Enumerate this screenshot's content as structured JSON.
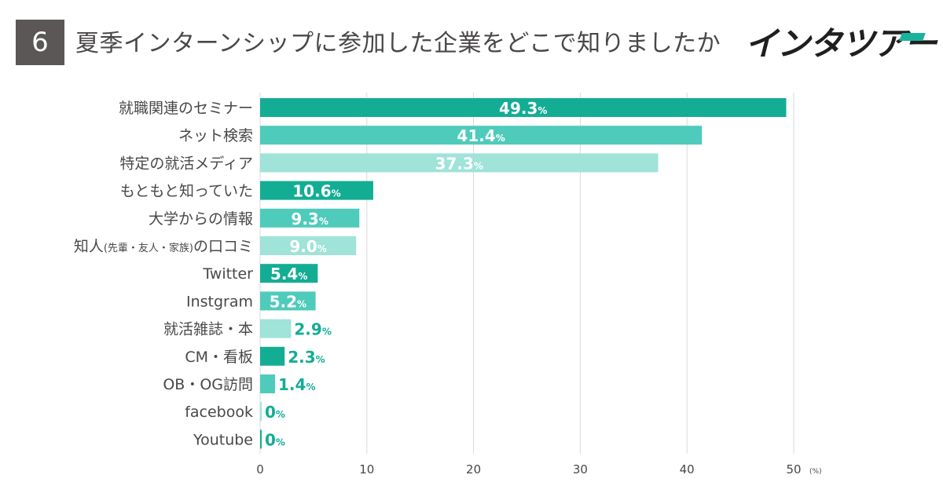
{
  "badge_number": "6",
  "logo": {
    "text": "インタツアー"
  },
  "colors": {
    "dark": "#13ad94",
    "medium": "#4fcbbb",
    "light": "#a0e3d8",
    "text": "#4a4747",
    "grid": "#d9d9d9",
    "badge": "#5b5757"
  },
  "chart_data": {
    "type": "bar",
    "orientation": "horizontal",
    "title": "夏季インターンシップに参加した企業をどこで知りましたか",
    "categories": [
      "就職関連のセミナー",
      "ネット検索",
      "特定の就活メディア",
      "もともと知っていた",
      "大学からの情報",
      "知人(先輩・友人・家族)の口コミ",
      "Twitter",
      "Instgram",
      "就活雑誌・本",
      "CM・看板",
      "OB・OG訪問",
      "facebook",
      "Youtube"
    ],
    "category_parts": [
      [
        "就職関連のセミナー"
      ],
      [
        "ネット検索"
      ],
      [
        "特定の就活メディア"
      ],
      [
        "もともと知っていた"
      ],
      [
        "大学からの情報"
      ],
      [
        "知人",
        "(先輩・友人・家族)",
        "の口コミ"
      ],
      [
        "Twitter"
      ],
      [
        "Instgram"
      ],
      [
        "就活雑誌・本"
      ],
      [
        "CM・看板"
      ],
      [
        "OB・OG訪問"
      ],
      [
        "facebook"
      ],
      [
        "Youtube"
      ]
    ],
    "values": [
      49.3,
      41.4,
      37.3,
      10.6,
      9.3,
      9.0,
      5.4,
      5.2,
      2.9,
      2.3,
      1.4,
      0,
      0
    ],
    "value_labels": [
      "49.3",
      "41.4",
      "37.3",
      "10.6",
      "9.3",
      "9.0",
      "5.4",
      "5.2",
      "2.9",
      "2.3",
      "1.4",
      "0",
      "0"
    ],
    "percent_symbol": "%",
    "xlim": [
      0,
      50
    ],
    "xticks": [
      0,
      10,
      20,
      30,
      40,
      50
    ],
    "xtick_labels": [
      "0",
      "10",
      "20",
      "30",
      "40",
      "50"
    ],
    "unit_label": "(%)",
    "grid": true,
    "color_cycle": [
      "dark",
      "medium",
      "light"
    ]
  }
}
